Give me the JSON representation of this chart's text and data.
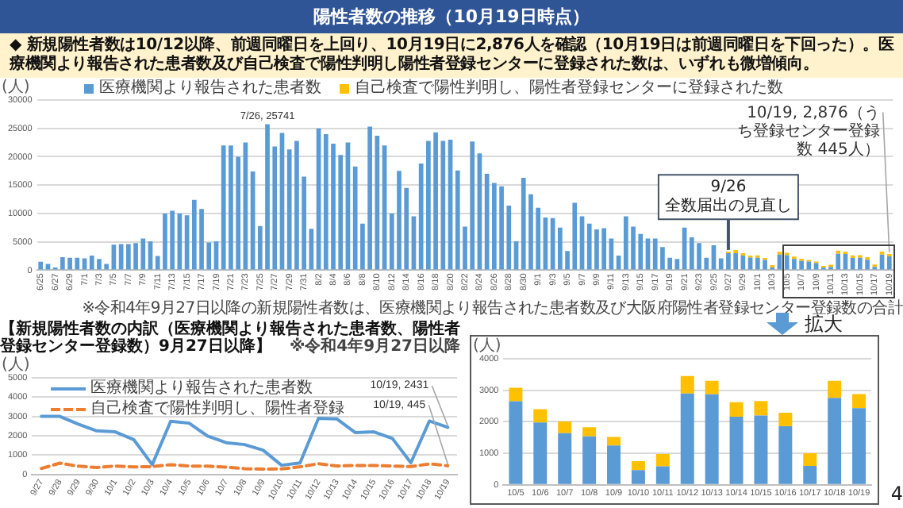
{
  "chart_data": [
    {
      "type": "bar",
      "title": "陽性者数の推移（10月19日時点）",
      "subtitle": "◆ 新規陽性者数は10/12以降、前週同曜日を上回り、10月19日に2,876人を確認（10月19日は前週同曜日を下回った）。医療機関より報告された患者数及び自己検査で陽性判明し陽性者登録センターに登録された数は、いずれも微増傾向。",
      "ylabel": "(人)",
      "categories": [
        "6/25",
        null,
        "6/27",
        null,
        "6/29",
        null,
        "7/1",
        null,
        "7/3",
        null,
        "7/5",
        null,
        "7/7",
        null,
        "7/9",
        null,
        "7/11",
        null,
        "7/13",
        null,
        "7/15",
        null,
        "7/17",
        null,
        "7/19",
        null,
        "7/21",
        null,
        "7/23",
        null,
        "7/25",
        null,
        "7/27",
        null,
        "7/29",
        null,
        "7/31",
        null,
        "8/2",
        null,
        "8/4",
        null,
        "8/6",
        null,
        "8/8",
        null,
        "8/10",
        null,
        "8/12",
        null,
        "8/14",
        null,
        "8/16",
        null,
        "8/18",
        null,
        "8/20",
        null,
        "8/22",
        null,
        "8/24",
        null,
        "8/26",
        null,
        "8/28",
        null,
        "8/30",
        null,
        "9/1",
        null,
        "9/3",
        null,
        "9/5",
        null,
        "9/7",
        null,
        "9/9",
        null,
        "9/11",
        null,
        "9/13",
        null,
        "9/15",
        null,
        "9/17",
        null,
        "9/19",
        null,
        "9/21",
        null,
        "9/23",
        null,
        "9/25",
        null,
        "9/27",
        null,
        "9/29",
        null,
        "10/1",
        null,
        "10/3",
        null,
        "10/5",
        null,
        "10/7",
        null,
        "10/9",
        null,
        "10/11",
        null,
        "10/13",
        null,
        "10/15",
        null,
        "10/17",
        null,
        "10/19"
      ],
      "series": [
        {
          "name": "医療機関より報告された患者数",
          "color": "#5b9bd5",
          "values": [
            1500,
            1100,
            500,
            2300,
            2200,
            2200,
            2100,
            2600,
            2000,
            1100,
            4500,
            4600,
            4600,
            4800,
            5600,
            5100,
            2500,
            10000,
            10500,
            10000,
            9700,
            12400,
            10800,
            4900,
            5100,
            22000,
            22000,
            20000,
            22500,
            17400,
            7800,
            25741,
            21800,
            24200,
            21300,
            22800,
            16500,
            7300,
            25000,
            24000,
            22300,
            20300,
            22500,
            18300,
            8200,
            25300,
            23700,
            22000,
            10000,
            17500,
            14500,
            9500,
            18800,
            22800,
            24300,
            22800,
            23000,
            17600,
            7700,
            22700,
            20600,
            17000,
            15400,
            14800,
            11400,
            5100,
            16300,
            13400,
            11000,
            9300,
            9200,
            7500,
            3400,
            11900,
            9500,
            8200,
            7200,
            7400,
            5600,
            2600,
            9500,
            7700,
            6400,
            5600,
            5600,
            4100,
            2200,
            2000,
            7500,
            5800,
            4800,
            2200,
            4400,
            2100,
            3000,
            3000,
            2600,
            2250,
            2200,
            1800,
            500,
            2750,
            2650,
            1980,
            1640,
            1540,
            1250,
            470,
            590,
            2900,
            2870,
            2160,
            2200,
            1860,
            600,
            2760,
            2431
          ]
        },
        {
          "name": "自己検査で陽性判明し、陽性者登録センターに登録された数",
          "color": "#ffc000",
          "values": [
            null,
            null,
            null,
            null,
            null,
            null,
            null,
            null,
            null,
            null,
            null,
            null,
            null,
            null,
            null,
            null,
            null,
            null,
            null,
            null,
            null,
            null,
            null,
            null,
            null,
            null,
            null,
            null,
            null,
            null,
            null,
            null,
            null,
            null,
            null,
            null,
            null,
            null,
            null,
            null,
            null,
            null,
            null,
            null,
            null,
            null,
            null,
            null,
            null,
            null,
            null,
            null,
            null,
            null,
            null,
            null,
            null,
            null,
            null,
            null,
            null,
            null,
            null,
            null,
            null,
            null,
            null,
            null,
            null,
            null,
            null,
            null,
            null,
            null,
            null,
            null,
            null,
            null,
            null,
            null,
            null,
            null,
            null,
            null,
            null,
            null,
            null,
            null,
            null,
            null,
            null,
            null,
            null,
            null,
            300,
            580,
            420,
            350,
            430,
            380,
            400,
            500,
            430,
            420,
            370,
            290,
            270,
            280,
            390,
            550,
            430,
            460,
            460,
            430,
            400,
            540,
            445
          ]
        }
      ],
      "stacked": true,
      "ylim": [
        0,
        30000
      ],
      "yticks": [
        0,
        5000,
        10000,
        15000,
        20000,
        25000,
        30000
      ],
      "grid": "y",
      "legend": "top",
      "ref_lines": [
        {
          "axis": "x",
          "value": "9/27",
          "label": "9/26\n全数届出の見直し",
          "color": "#44546a"
        }
      ],
      "annotations": [
        {
          "text": "7/26, 25741",
          "y": 25741
        },
        {
          "text": "10/19, 2,876（うち登録センター登録数 445人）",
          "x": "10/19",
          "y": 2876
        },
        "※令和4年9月27日以降の新規陽性者数は、医療機関より報告された患者数及び大阪府陽性者登録センター登録数の合計"
      ]
    },
    {
      "type": "line",
      "title": "【新規陽性者数の内訳（医療機関より報告された患者数、陽性者登録センター登録数）9月27日以降】",
      "ylabel": "(人)",
      "categories": [
        "9/27",
        "9/28",
        "9/29",
        "9/30",
        "10/1",
        "10/2",
        "10/3",
        "10/4",
        "10/5",
        "10/6",
        "10/7",
        "10/8",
        "10/9",
        "10/10",
        "10/11",
        "10/12",
        "10/13",
        "10/14",
        "10/15",
        "10/16",
        "10/17",
        "10/18",
        "10/19"
      ],
      "series": [
        {
          "name": "医療機関より報告された患者数",
          "color": "#5b9bd5",
          "values": [
            3000,
            3000,
            2600,
            2250,
            2200,
            1800,
            500,
            2750,
            2650,
            1980,
            1640,
            1540,
            1250,
            470,
            590,
            2900,
            2870,
            2160,
            2200,
            1860,
            600,
            2760,
            2431
          ]
        },
        {
          "name": "自己検査で陽性判明し、陽性者登録",
          "color": "#ed7d31",
          "line_style": "dashed",
          "values": [
            300,
            580,
            420,
            350,
            430,
            380,
            400,
            500,
            430,
            420,
            370,
            290,
            270,
            280,
            390,
            550,
            430,
            460,
            460,
            430,
            400,
            540,
            445
          ]
        }
      ],
      "ylim": [
        0,
        5000
      ],
      "yticks": [
        0,
        1000,
        2000,
        3000,
        4000,
        5000
      ],
      "grid": "y",
      "legend": "top left",
      "annotations": [
        {
          "text": "10/19, 2431",
          "x": "10/19",
          "y": 2431
        },
        {
          "text": "10/19, 445",
          "x": "10/19",
          "y": 445
        },
        "※令和4年9月27日以降"
      ]
    },
    {
      "type": "bar",
      "ylabel": "(人)",
      "categories": [
        "10/5",
        "10/6",
        "10/7",
        "10/8",
        "10/9",
        "10/10",
        "10/11",
        "10/12",
        "10/13",
        "10/14",
        "10/15",
        "10/16",
        "10/17",
        "10/18",
        "10/19"
      ],
      "series": [
        {
          "color": "#5b9bd5",
          "values": [
            2650,
            1980,
            1640,
            1540,
            1250,
            470,
            590,
            2900,
            2870,
            2160,
            2200,
            1860,
            600,
            2760,
            2431
          ]
        },
        {
          "color": "#ffc000",
          "values": [
            430,
            420,
            370,
            290,
            270,
            280,
            390,
            550,
            430,
            460,
            460,
            430,
            400,
            540,
            445
          ]
        }
      ],
      "stacked": true,
      "ylim": [
        0,
        4000
      ],
      "yticks": [
        0,
        1000,
        2000,
        3000,
        4000
      ],
      "grid": "y",
      "annotations": [
        "拡大",
        "4"
      ]
    }
  ]
}
